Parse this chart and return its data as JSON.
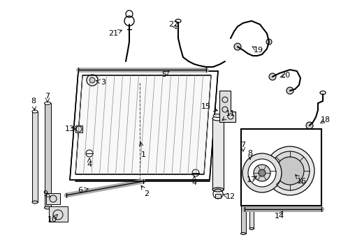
{
  "bg_color": "#ffffff",
  "fig_width": 4.89,
  "fig_height": 3.6,
  "dpi": 100,
  "black": "#000000",
  "gray": "#aaaaaa",
  "dgray": "#555555"
}
